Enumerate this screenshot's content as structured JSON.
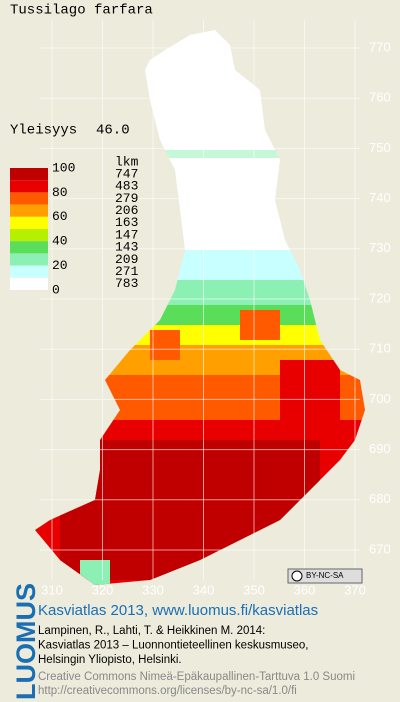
{
  "title": "Tussilago farfara",
  "frequency": {
    "label": "Yleisyys",
    "value": "46.0"
  },
  "legend": {
    "header": "lkm",
    "levels": [
      100,
      80,
      60,
      40,
      20,
      0
    ],
    "classes": [
      {
        "count": 747,
        "color": "#c00000"
      },
      {
        "count": 483,
        "color": "#e80000"
      },
      {
        "count": 279,
        "color": "#ff5a00"
      },
      {
        "count": 206,
        "color": "#ffa000"
      },
      {
        "count": 163,
        "color": "#ffff00"
      },
      {
        "count": 147,
        "color": "#b4f000"
      },
      {
        "count": 143,
        "color": "#5ade5a"
      },
      {
        "count": 209,
        "color": "#8cf0b4"
      },
      {
        "count": 271,
        "color": "#c8ffff"
      },
      {
        "count": 783,
        "color": "#ffffff"
      }
    ]
  },
  "map": {
    "northing_labels": [
      770,
      760,
      750,
      740,
      730,
      720,
      710,
      700,
      690,
      680,
      670
    ],
    "easting_labels": [
      310,
      320,
      330,
      340,
      350,
      360,
      370
    ],
    "license_badge": "BY-NC-SA"
  },
  "footer": {
    "logo": "LUOMUS",
    "headline": "Kasviatlas 2013, www.luomus.fi/kasviatlas",
    "citation": [
      "Lampinen, R., Lahti, T. & Heikkinen M. 2014:",
      "Kasviatlas 2013 – Luonnontieteellinen keskusmuseo,",
      "Helsingin Yliopisto, Helsinki."
    ],
    "license": [
      "Creative Commons Nimeä-Epäkaupallinen-Tarttuva 1.0 Suomi",
      "http://creativecommons.org/licenses/by-nc-sa/1.0/fi"
    ]
  }
}
